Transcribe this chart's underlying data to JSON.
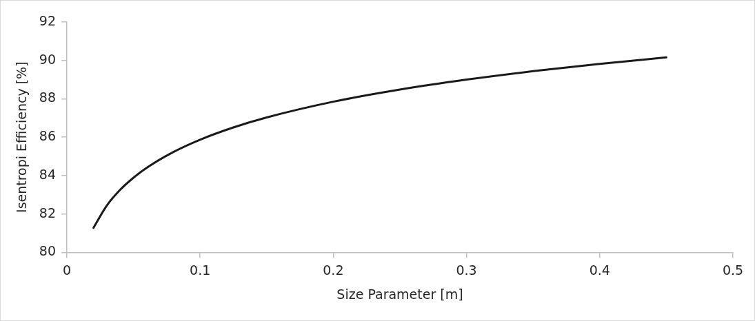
{
  "chart_data": {
    "type": "line",
    "xlabel": "Size Parameter [m]",
    "ylabel": "Isentropi Efficiency [%]",
    "x": [
      0.02,
      0.03,
      0.04,
      0.05,
      0.06,
      0.08,
      0.1,
      0.125,
      0.15,
      0.2,
      0.25,
      0.3,
      0.35,
      0.4,
      0.45
    ],
    "series": [
      {
        "color": "#1a1a1a",
        "values": [
          81.28,
          82.44,
          83.26,
          83.89,
          84.41,
          85.23,
          85.87,
          86.51,
          87.03,
          87.85,
          88.48,
          89.0,
          89.44,
          89.82,
          90.16
        ]
      }
    ],
    "xlim": [
      0,
      0.5
    ],
    "xticks": [
      0,
      0.1,
      0.2,
      0.3,
      0.4,
      0.5
    ],
    "ylim": [
      80,
      92
    ],
    "yticks": [
      80,
      82,
      84,
      86,
      88,
      90,
      92
    ],
    "grid": false,
    "legend": false,
    "marker": "none",
    "line_style": "solid"
  }
}
